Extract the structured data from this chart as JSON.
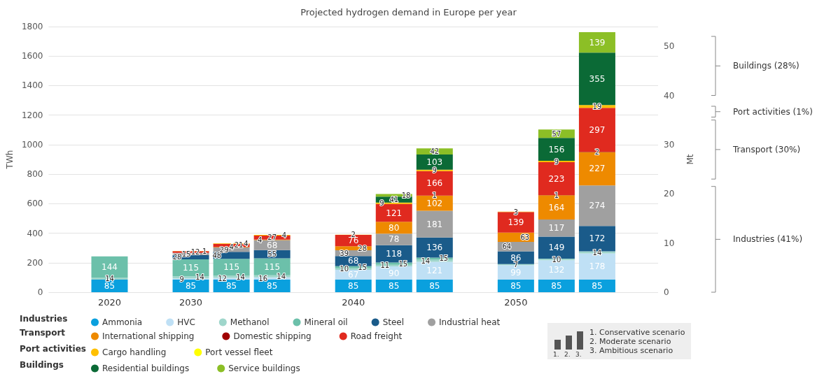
{
  "chart_data": {
    "type": "bar",
    "title": "Projected hydrogen demand in Europe per year",
    "ylabel": "TWh",
    "y2label": "Mt",
    "categories": [
      null,
      "2020",
      null,
      "2030",
      null,
      null,
      null,
      "2040",
      null,
      null,
      null,
      "2050",
      null,
      null,
      null
    ],
    "stacked": true,
    "data_labels": true,
    "grid": "y",
    "legend": "bottom",
    "ylim": [
      0,
      1800
    ],
    "yticks": [
      0,
      200,
      400,
      600,
      800,
      1000,
      1200,
      1400,
      1600,
      1800
    ],
    "y2lim": [
      0,
      54
    ],
    "y2ticks": [
      0,
      10,
      20,
      30,
      40,
      50
    ],
    "series": [
      {
        "name": "Ammonia",
        "color": "#0aa0de",
        "values": [
          null,
          85,
          null,
          85,
          85,
          85,
          null,
          85,
          85,
          85,
          null,
          85,
          85,
          85,
          null
        ]
      },
      {
        "name": "HVC",
        "color": "#bfe0f5",
        "values": [
          null,
          null,
          null,
          9,
          12,
          16,
          null,
          67,
          90,
          121,
          null,
          99,
          132,
          178,
          null
        ]
      },
      {
        "name": "Methanol",
        "color": "#9fd6cb",
        "values": [
          null,
          14,
          null,
          14,
          14,
          14,
          null,
          10,
          11,
          14,
          null,
          7,
          10,
          14,
          null
        ]
      },
      {
        "name": "Mineral oil",
        "color": "#6cc0aa",
        "values": [
          null,
          144,
          null,
          115,
          115,
          115,
          null,
          15,
          15,
          15,
          null,
          null,
          null,
          null,
          null
        ]
      },
      {
        "name": "Steel",
        "color": "#1a5b8a",
        "values": [
          null,
          null,
          null,
          28,
          48,
          55,
          null,
          68,
          118,
          136,
          null,
          86,
          149,
          172,
          null
        ]
      },
      {
        "name": "Industrial heat",
        "color": "#a0a0a0",
        "values": [
          null,
          null,
          null,
          15,
          29,
          68,
          null,
          39,
          78,
          181,
          null,
          64,
          117,
          274,
          null
        ]
      },
      {
        "name": "International shipping",
        "color": "#ee8a00",
        "values": [
          null,
          null,
          null,
          null,
          4,
          4,
          null,
          28,
          80,
          102,
          null,
          63,
          164,
          227,
          null
        ]
      },
      {
        "name": "Domestic shipping",
        "color": "#a00000",
        "values": [
          null,
          null,
          null,
          null,
          null,
          null,
          null,
          null,
          null,
          1,
          null,
          null,
          1,
          2,
          null
        ]
      },
      {
        "name": "Road freight",
        "color": "#e02a1f",
        "values": [
          null,
          null,
          null,
          12,
          21,
          27,
          null,
          76,
          121,
          166,
          null,
          139,
          223,
          297,
          null
        ]
      },
      {
        "name": "Cargo handling",
        "color": "#ffc000",
        "values": [
          null,
          null,
          null,
          1,
          4,
          4,
          null,
          2,
          9,
          9,
          null,
          3,
          9,
          19,
          null
        ]
      },
      {
        "name": "Port vessel fleet",
        "color": "#ffff00",
        "values": [
          null,
          null,
          null,
          null,
          null,
          null,
          null,
          null,
          null,
          null,
          null,
          null,
          null,
          null,
          null
        ]
      },
      {
        "name": "Residential buildings",
        "color": "#0b6a36",
        "values": [
          null,
          null,
          null,
          null,
          null,
          null,
          null,
          null,
          41,
          103,
          null,
          null,
          156,
          355,
          null
        ]
      },
      {
        "name": "Service buildings",
        "color": "#8cbf26",
        "values": [
          null,
          null,
          null,
          null,
          null,
          null,
          null,
          null,
          18,
          42,
          null,
          null,
          57,
          139,
          null
        ]
      }
    ],
    "annotations": [
      "Industries (41%)",
      "Transport (30%)",
      "Port activities (1%)",
      "Buildings (28%)",
      "Industries",
      "Transport",
      "Port activities",
      "Buildings",
      "1. Conservative scenario",
      "2. Moderate scenario",
      "3. Ambitious scenario",
      "1.",
      "2.",
      "3."
    ]
  }
}
